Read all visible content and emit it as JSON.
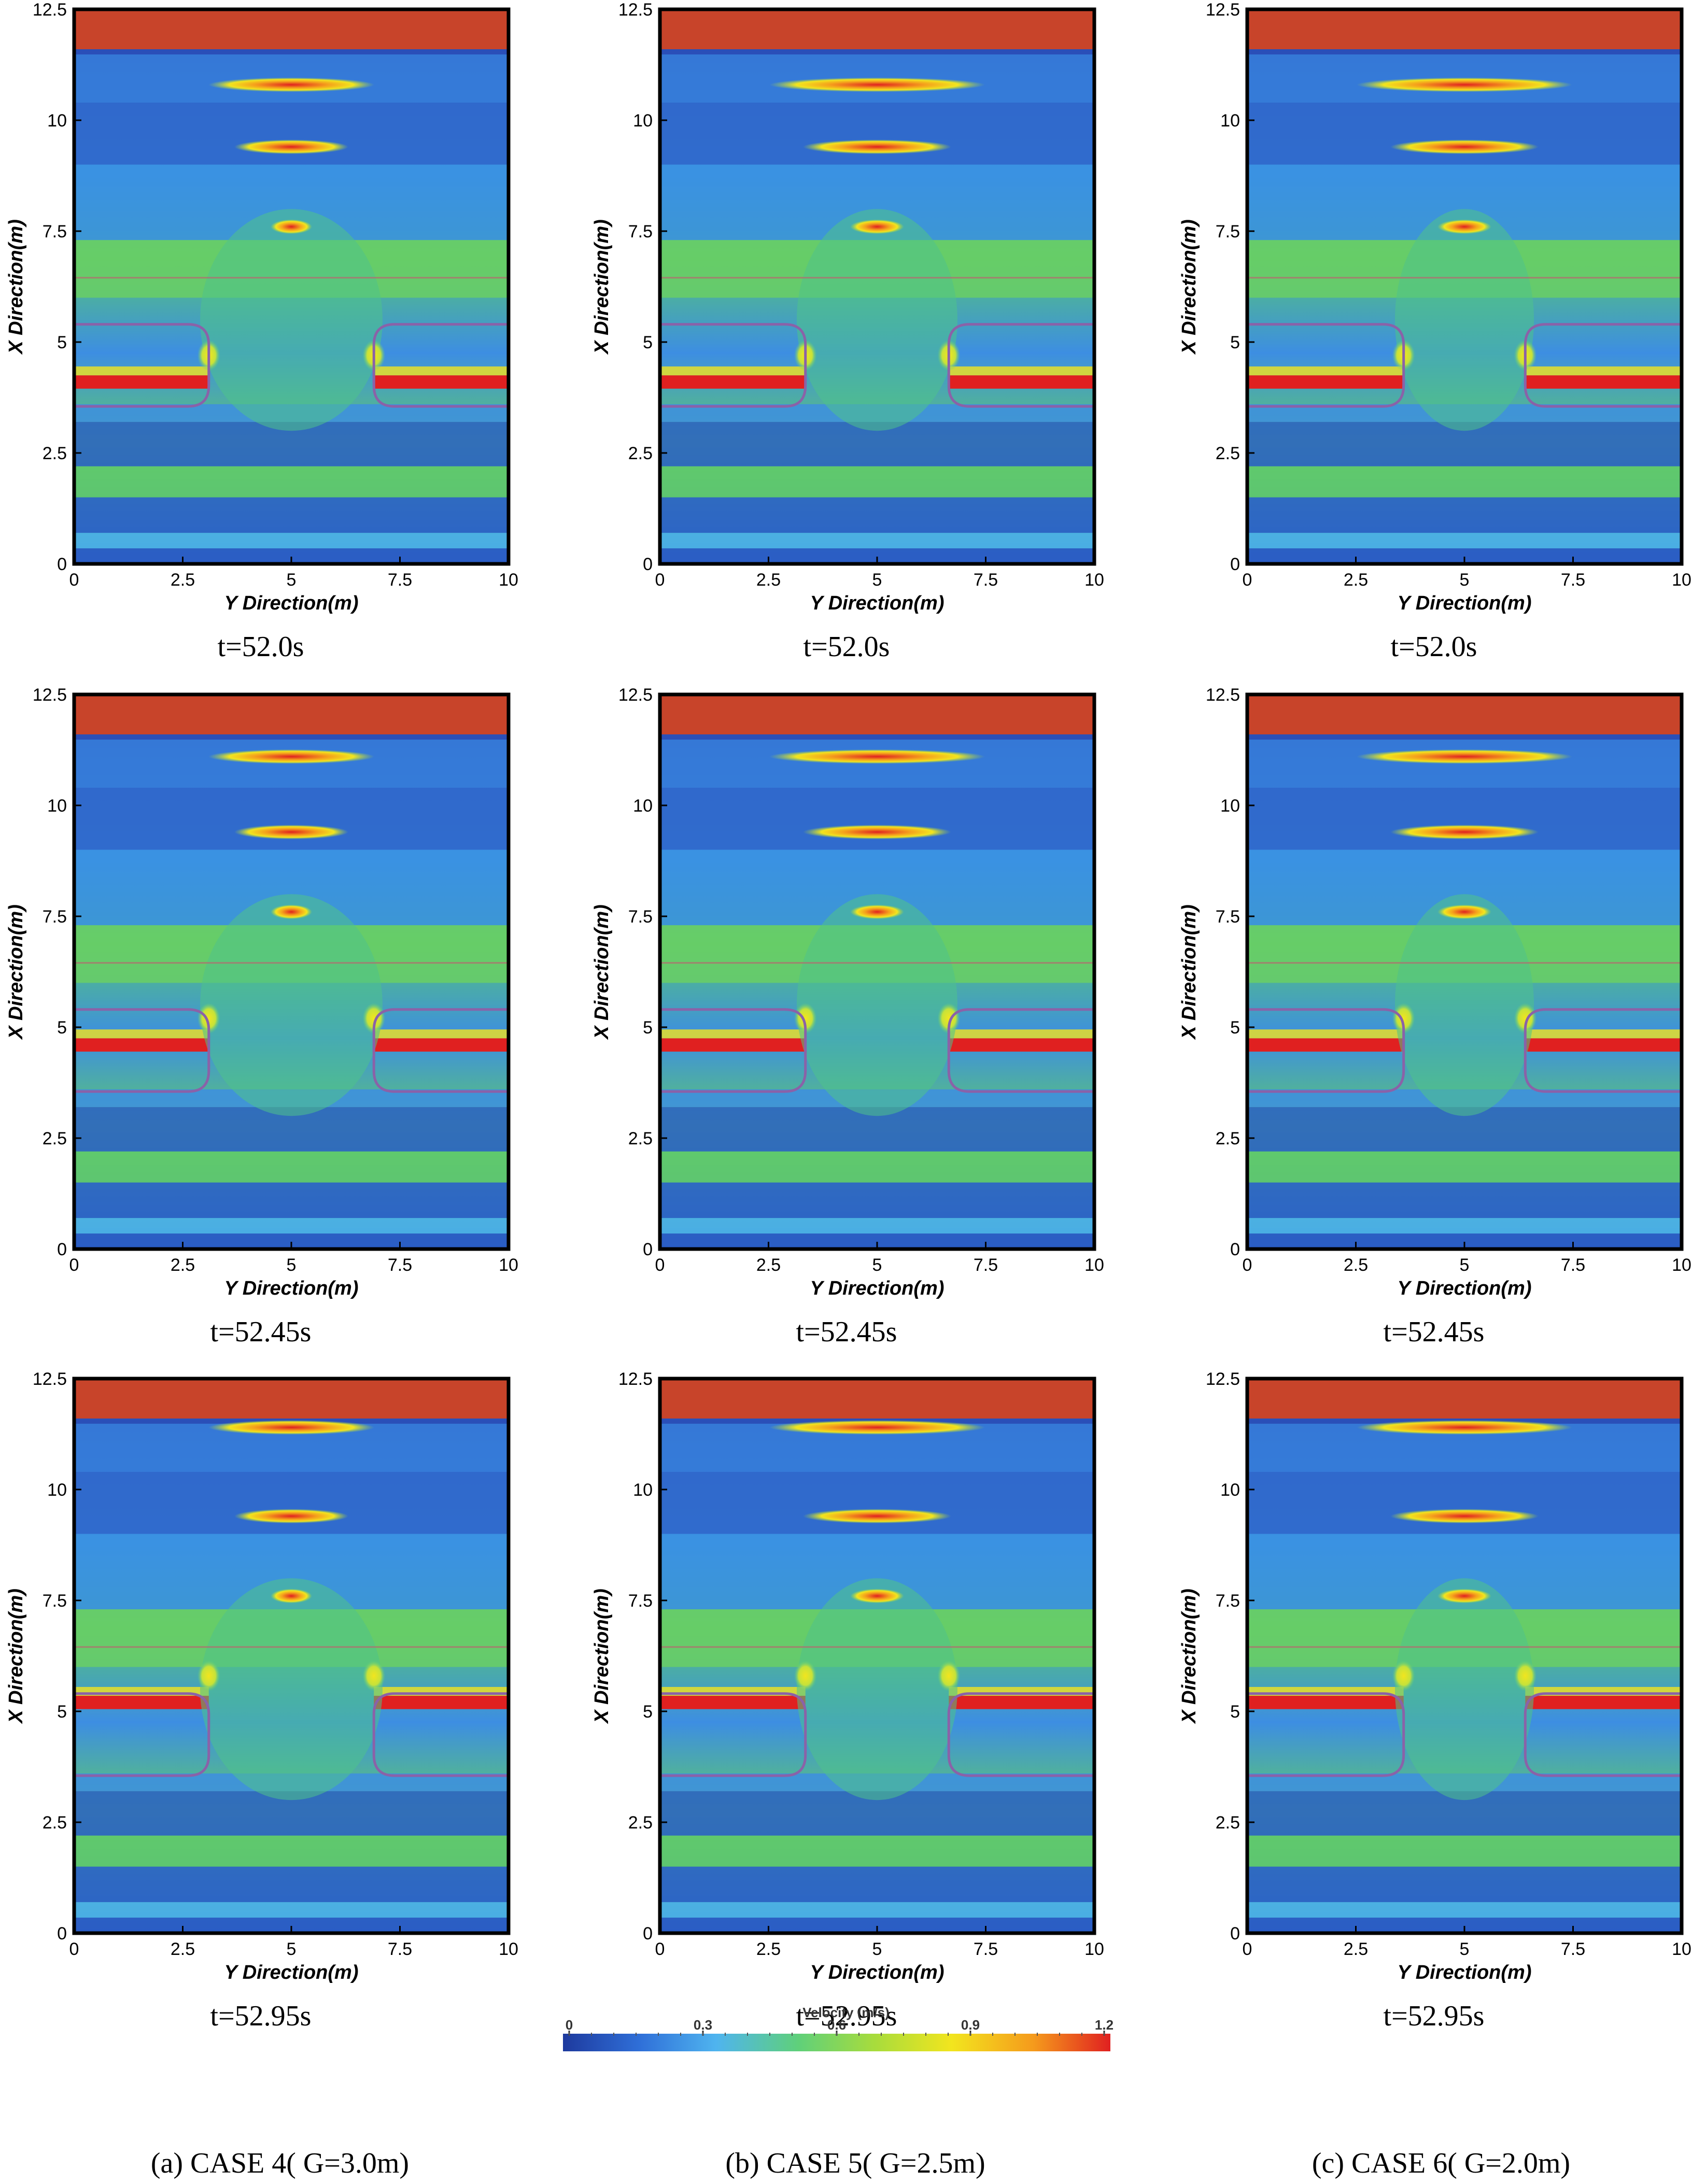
{
  "figure": {
    "captions": [
      "(a)  CASE  4( G=3.0m)",
      "(b)  CASE  5( G=2.5m)",
      "(c)  CASE  6( G=2.0m)"
    ],
    "time_labels": [
      "t=52.0s",
      "t=52.45s",
      "t=52.95s"
    ]
  },
  "colorbar": {
    "title": "Velocity (m/s)",
    "ticks": [
      "0",
      "0.3",
      "0.6",
      "0.9",
      "1.2"
    ],
    "range": [
      0,
      1.2
    ],
    "colors": [
      "#1e3a9e",
      "#2f6fd8",
      "#4fb4ef",
      "#5fd07a",
      "#a8dc3c",
      "#f2e51e",
      "#f59a1c",
      "#e02020"
    ]
  },
  "chart_data": {
    "type": "heatmap",
    "xlabel": "Y Direction(m)",
    "ylabel": "X Direction(m)",
    "xlim": [
      0,
      10
    ],
    "ylim": [
      0,
      12.5
    ],
    "xticks": [
      "0",
      "2.5",
      "5",
      "7.5",
      "10"
    ],
    "yticks": [
      "0",
      "2.5",
      "5",
      "7.5",
      "10",
      "12.5"
    ],
    "cases": [
      {
        "label": "CASE 4",
        "G": 3.0
      },
      {
        "label": "CASE 5",
        "G": 2.5
      },
      {
        "label": "CASE 6",
        "G": 2.0
      }
    ],
    "times": [
      52.0,
      52.45,
      52.95
    ]
  }
}
